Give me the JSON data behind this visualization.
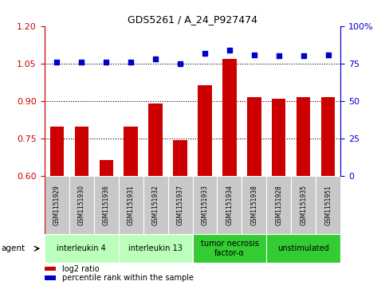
{
  "title": "GDS5261 / A_24_P927474",
  "samples": [
    "GSM1151929",
    "GSM1151930",
    "GSM1151936",
    "GSM1151931",
    "GSM1151932",
    "GSM1151937",
    "GSM1151933",
    "GSM1151934",
    "GSM1151938",
    "GSM1151928",
    "GSM1151935",
    "GSM1151951"
  ],
  "log2_ratio": [
    0.8,
    0.8,
    0.665,
    0.8,
    0.89,
    0.745,
    0.965,
    1.07,
    0.915,
    0.91,
    0.915,
    0.915
  ],
  "percentile_rank": [
    76,
    76,
    76,
    76,
    78,
    75,
    82,
    84,
    81,
    80,
    80,
    81
  ],
  "ylim_left": [
    0.6,
    1.2
  ],
  "ylim_right": [
    0,
    100
  ],
  "yticks_left": [
    0.6,
    0.75,
    0.9,
    1.05,
    1.2
  ],
  "yticks_right": [
    0,
    25,
    50,
    75,
    100
  ],
  "hlines": [
    0.75,
    0.9,
    1.05
  ],
  "bar_color": "#cc0000",
  "dot_color": "#0000cc",
  "agent_groups": [
    {
      "label": "interleukin 4",
      "start": 0,
      "end": 3,
      "color": "#bbffbb"
    },
    {
      "label": "interleukin 13",
      "start": 3,
      "end": 6,
      "color": "#bbffbb"
    },
    {
      "label": "tumor necrosis\nfactor-α",
      "start": 6,
      "end": 9,
      "color": "#33cc33"
    },
    {
      "label": "unstimulated",
      "start": 9,
      "end": 12,
      "color": "#33cc33"
    }
  ],
  "agent_label": "agent",
  "legend_log2": "log2 ratio",
  "legend_pct": "percentile rank within the sample",
  "bar_color_left": "#cc0000",
  "dot_color_right": "#0000cc",
  "bar_width": 0.55,
  "dot_size": 18,
  "bg_xticklabel": "#c8c8c8",
  "tick_fontsize": 8,
  "sample_fontsize": 5.5,
  "agent_fontsize": 7
}
